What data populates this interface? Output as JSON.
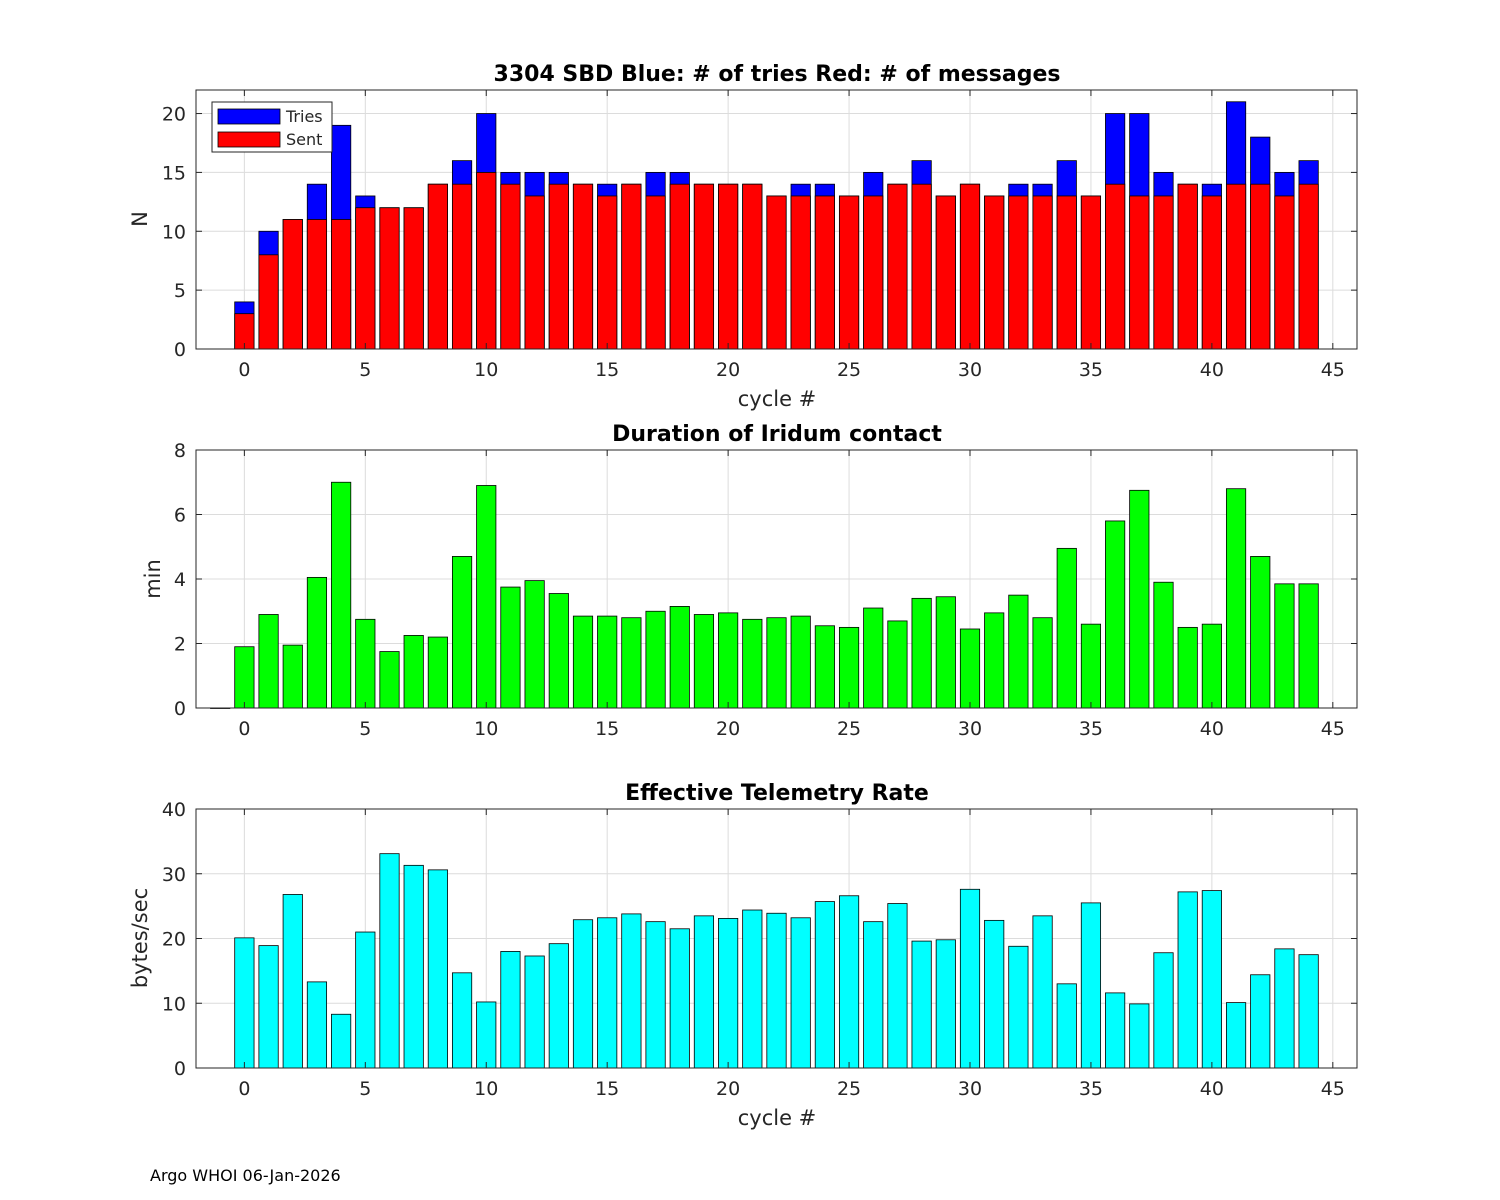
{
  "footer": "Argo WHOI 06-Jan-2026",
  "chart_data": [
    {
      "type": "bar",
      "title": "3304 SBD  Blue: # of tries   Red: # of messages",
      "xlabel": "cycle #",
      "ylabel": "N",
      "xlim": [
        -2,
        46
      ],
      "ylim": [
        0,
        22
      ],
      "xticks": [
        0,
        5,
        10,
        15,
        20,
        25,
        30,
        35,
        40,
        45
      ],
      "yticks": [
        0,
        5,
        10,
        15,
        20
      ],
      "grid": true,
      "legend_position": "top-left",
      "x": [
        0,
        1,
        2,
        3,
        4,
        5,
        6,
        7,
        8,
        9,
        10,
        11,
        12,
        13,
        14,
        15,
        16,
        17,
        18,
        19,
        20,
        21,
        22,
        23,
        24,
        25,
        26,
        27,
        28,
        29,
        30,
        31,
        32,
        33,
        34,
        35,
        36,
        37,
        38,
        39,
        40,
        41,
        42,
        43,
        44
      ],
      "series": [
        {
          "name": "Tries",
          "color": "#0000ff",
          "values": [
            4,
            10,
            11,
            14,
            19,
            13,
            12,
            12,
            14,
            16,
            20,
            15,
            15,
            15,
            14,
            14,
            14,
            15,
            15,
            14,
            14,
            14,
            13,
            14,
            14,
            13,
            15,
            14,
            16,
            13,
            14,
            13,
            14,
            14,
            16,
            13,
            20,
            20,
            15,
            14,
            14,
            21,
            18,
            15,
            16
          ]
        },
        {
          "name": "Sent",
          "color": "#ff0000",
          "values": [
            3,
            8,
            11,
            11,
            11,
            12,
            12,
            12,
            14,
            14,
            15,
            14,
            13,
            14,
            14,
            13,
            14,
            13,
            14,
            14,
            14,
            14,
            13,
            13,
            13,
            13,
            13,
            14,
            14,
            13,
            14,
            13,
            13,
            13,
            13,
            13,
            14,
            13,
            13,
            14,
            13,
            14,
            14,
            13,
            14
          ]
        }
      ]
    },
    {
      "type": "bar",
      "title": "Duration of Iridum contact",
      "xlabel": "",
      "ylabel": "min",
      "xlim": [
        -2,
        46
      ],
      "ylim": [
        0,
        8
      ],
      "xticks": [
        0,
        5,
        10,
        15,
        20,
        25,
        30,
        35,
        40,
        45
      ],
      "yticks": [
        0,
        2,
        4,
        6,
        8
      ],
      "grid": true,
      "x": [
        -1,
        0,
        1,
        2,
        3,
        4,
        5,
        6,
        7,
        8,
        9,
        10,
        11,
        12,
        13,
        14,
        15,
        16,
        17,
        18,
        19,
        20,
        21,
        22,
        23,
        24,
        25,
        26,
        27,
        28,
        29,
        30,
        31,
        32,
        33,
        34,
        35,
        36,
        37,
        38,
        39,
        40,
        41,
        42,
        43,
        44
      ],
      "series": [
        {
          "name": "Duration",
          "color": "#00ff00",
          "values": [
            0,
            1.9,
            2.9,
            1.95,
            4.05,
            7.0,
            2.75,
            1.75,
            2.25,
            2.2,
            4.7,
            6.9,
            3.75,
            3.95,
            3.55,
            2.85,
            2.85,
            2.8,
            3.0,
            3.15,
            2.9,
            2.95,
            2.75,
            2.8,
            2.85,
            2.55,
            2.5,
            3.1,
            2.7,
            3.4,
            3.45,
            2.45,
            2.95,
            3.5,
            2.8,
            4.95,
            2.6,
            5.8,
            6.75,
            3.9,
            2.5,
            2.6,
            6.8,
            4.7,
            3.85,
            3.85
          ]
        }
      ]
    },
    {
      "type": "bar",
      "title": "Effective Telemetry Rate",
      "xlabel": "cycle #",
      "ylabel": "bytes/sec",
      "xlim": [
        -2,
        46
      ],
      "ylim": [
        0,
        40
      ],
      "xticks": [
        0,
        5,
        10,
        15,
        20,
        25,
        30,
        35,
        40,
        45
      ],
      "yticks": [
        0,
        10,
        20,
        30,
        40
      ],
      "grid": true,
      "x": [
        0,
        1,
        2,
        3,
        4,
        5,
        6,
        7,
        8,
        9,
        10,
        11,
        12,
        13,
        14,
        15,
        16,
        17,
        18,
        19,
        20,
        21,
        22,
        23,
        24,
        25,
        26,
        27,
        28,
        29,
        30,
        31,
        32,
        33,
        34,
        35,
        36,
        37,
        38,
        39,
        40,
        41,
        42,
        43,
        44
      ],
      "series": [
        {
          "name": "Rate",
          "color": "#00ffff",
          "values": [
            20.1,
            18.9,
            26.8,
            13.3,
            8.3,
            21.0,
            33.1,
            31.3,
            30.6,
            14.7,
            10.2,
            18.0,
            17.3,
            19.2,
            22.9,
            23.2,
            23.8,
            22.6,
            21.5,
            23.5,
            23.1,
            24.4,
            23.9,
            23.2,
            25.7,
            26.6,
            22.6,
            25.4,
            19.6,
            19.8,
            27.6,
            22.8,
            18.8,
            23.5,
            13.0,
            25.5,
            11.6,
            9.9,
            17.8,
            27.2,
            27.4,
            10.1,
            14.4,
            18.4,
            17.5
          ]
        }
      ]
    }
  ]
}
